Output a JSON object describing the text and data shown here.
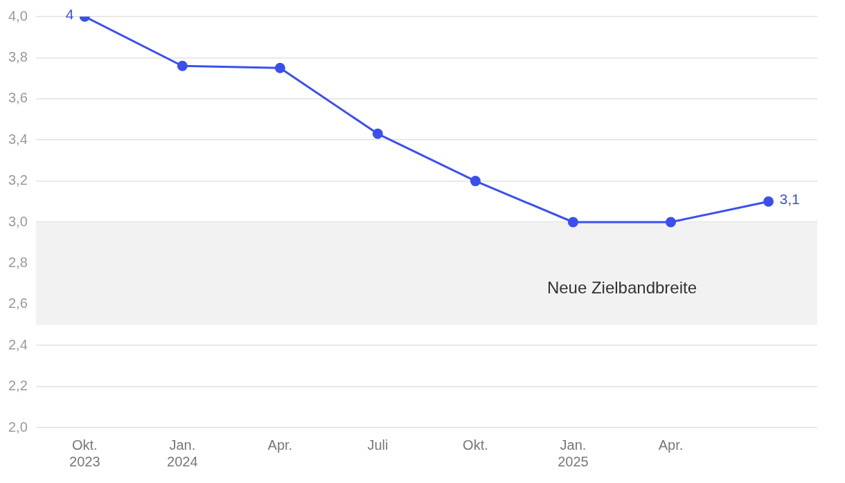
{
  "chart_data": {
    "type": "line",
    "categories": [
      "Okt.\n2023",
      "Jan.\n2024",
      "Apr.",
      "Juli",
      "Okt.",
      "Jan.\n2025",
      "Apr.",
      null
    ],
    "series": [
      {
        "color": "#3a4ff0",
        "values": [
          4,
          3.76,
          3.75,
          3.43,
          3.2,
          3.0,
          3.0,
          3.1
        ],
        "value_labels": [
          "4",
          null,
          null,
          null,
          null,
          null,
          null,
          "3,1"
        ]
      }
    ],
    "ylim": [
      2,
      4
    ],
    "yticks": [
      {
        "value": 2,
        "label": "2,0"
      },
      {
        "value": 2.2,
        "label": "2,2"
      },
      {
        "value": 2.4,
        "label": "2,4"
      },
      {
        "value": 2.6,
        "label": "2,6"
      },
      {
        "value": 2.8,
        "label": "2,8"
      },
      {
        "value": 3,
        "label": "3,0"
      },
      {
        "value": 3.2,
        "label": "3,2"
      },
      {
        "value": 3.4,
        "label": "3,4"
      },
      {
        "value": 3.6,
        "label": "3,6"
      },
      {
        "value": 3.8,
        "label": "3,8"
      },
      {
        "value": 4,
        "label": "4,0"
      }
    ],
    "bands": [
      {
        "axis": "y",
        "from": 2.5,
        "to": 3.0,
        "label": "Neue Zielbandbreite",
        "color": "#f2f2f2"
      }
    ],
    "grid": "y",
    "legend": false,
    "marker": "circle",
    "line_style": "solid"
  }
}
